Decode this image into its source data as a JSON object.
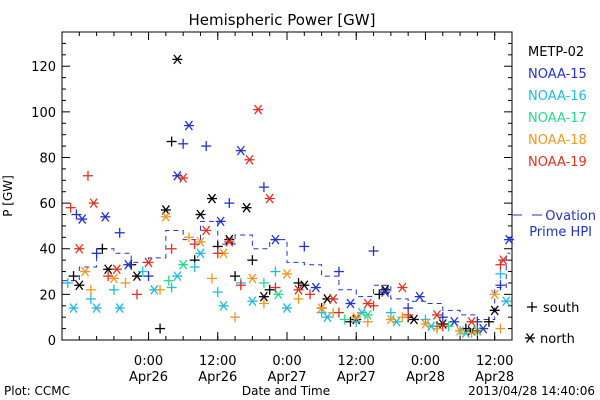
{
  "chart_data": {
    "type": "scatter",
    "title": "Hemispheric Power [GW]",
    "ylabel": "P [GW]",
    "xlabel": "Date and Time",
    "ylim": [
      0,
      135
    ],
    "yticks": [
      0,
      20,
      40,
      60,
      80,
      100,
      120
    ],
    "xrange": [
      "2013-04-25 09:00",
      "2013-04-28 15:00"
    ],
    "xticks": [
      {
        "t": "2013-04-26 00:00",
        "time": "0:00",
        "date": "Apr26"
      },
      {
        "t": "2013-04-26 12:00",
        "time": "12:00",
        "date": "Apr26"
      },
      {
        "t": "2013-04-27 00:00",
        "time": "0:00",
        "date": "Apr27"
      },
      {
        "t": "2013-04-27 12:00",
        "time": "12:00",
        "date": "Apr27"
      },
      {
        "t": "2013-04-28 00:00",
        "time": "0:00",
        "date": "Apr28"
      },
      {
        "t": "2013-04-28 12:00",
        "time": "12:00",
        "date": "Apr28"
      }
    ],
    "grid": false,
    "legend_position": "right",
    "series": [
      {
        "name": "METP-02",
        "color": "#000000",
        "south": [
          [
            "2013-04-25 11:00",
            28
          ],
          [
            "2013-04-25 16:00",
            40
          ],
          [
            "2013-04-25 21:00",
            33
          ],
          [
            "2013-04-26 02:00",
            5
          ],
          [
            "2013-04-26 04:00",
            87
          ],
          [
            "2013-04-26 08:00",
            35
          ],
          [
            "2013-04-26 12:00",
            41
          ],
          [
            "2013-04-26 15:00",
            28
          ],
          [
            "2013-04-26 18:00",
            35
          ],
          [
            "2013-04-26 21:00",
            22
          ],
          [
            "2013-04-27 02:00",
            25
          ],
          [
            "2013-04-27 06:00",
            14
          ],
          [
            "2013-04-27 11:00",
            8
          ],
          [
            "2013-04-27 16:00",
            20
          ],
          [
            "2013-04-27 21:00",
            10
          ],
          [
            "2013-04-28 02:00",
            6
          ],
          [
            "2013-04-28 07:00",
            5
          ],
          [
            "2013-04-28 11:00",
            8
          ]
        ],
        "north": [
          [
            "2013-04-25 12:00",
            24
          ],
          [
            "2013-04-25 17:00",
            31
          ],
          [
            "2013-04-25 22:00",
            28
          ],
          [
            "2013-04-26 03:00",
            57
          ],
          [
            "2013-04-26 05:00",
            123
          ],
          [
            "2013-04-26 09:00",
            55
          ],
          [
            "2013-04-26 11:00",
            62
          ],
          [
            "2013-04-26 14:00",
            44
          ],
          [
            "2013-04-26 17:00",
            58
          ],
          [
            "2013-04-26 20:00",
            19
          ],
          [
            "2013-04-27 03:00",
            24
          ],
          [
            "2013-04-27 07:00",
            18
          ],
          [
            "2013-04-27 12:00",
            9
          ],
          [
            "2013-04-27 17:00",
            22
          ],
          [
            "2013-04-27 22:00",
            9
          ],
          [
            "2013-04-28 03:00",
            7
          ],
          [
            "2013-04-28 08:00",
            4
          ],
          [
            "2013-04-28 12:00",
            13
          ]
        ]
      },
      {
        "name": "NOAA-15",
        "color": "#2233cc",
        "south": [
          [
            "2013-04-25 11:30",
            55
          ],
          [
            "2013-04-25 15:00",
            38
          ],
          [
            "2013-04-25 19:00",
            47
          ],
          [
            "2013-04-26 00:00",
            28
          ],
          [
            "2013-04-26 06:00",
            86
          ],
          [
            "2013-04-26 10:00",
            85
          ],
          [
            "2013-04-26 14:00",
            60
          ],
          [
            "2013-04-26 20:00",
            67
          ],
          [
            "2013-04-27 03:00",
            41
          ],
          [
            "2013-04-27 09:00",
            30
          ],
          [
            "2013-04-27 15:00",
            39
          ],
          [
            "2013-04-27 21:00",
            14
          ],
          [
            "2013-04-28 03:00",
            10
          ],
          [
            "2013-04-28 09:00",
            8
          ],
          [
            "2013-04-28 13:00",
            24
          ]
        ],
        "north": [
          [
            "2013-04-25 12:30",
            53
          ],
          [
            "2013-04-25 16:30",
            54
          ],
          [
            "2013-04-25 20:30",
            33
          ],
          [
            "2013-04-26 05:00",
            72
          ],
          [
            "2013-04-26 07:00",
            94
          ],
          [
            "2013-04-26 12:30",
            52
          ],
          [
            "2013-04-26 16:00",
            83
          ],
          [
            "2013-04-26 22:00",
            44
          ],
          [
            "2013-04-27 05:00",
            23
          ],
          [
            "2013-04-27 11:00",
            16
          ],
          [
            "2013-04-27 17:00",
            21
          ],
          [
            "2013-04-27 23:00",
            19
          ],
          [
            "2013-04-28 05:00",
            8
          ],
          [
            "2013-04-28 10:00",
            5
          ],
          [
            "2013-04-28 14:30",
            44
          ]
        ]
      },
      {
        "name": "NOAA-16",
        "color": "#22bbdd",
        "south": [
          [
            "2013-04-25 10:00",
            25
          ],
          [
            "2013-04-25 14:00",
            18
          ],
          [
            "2013-04-25 18:00",
            22
          ],
          [
            "2013-04-25 23:00",
            30
          ],
          [
            "2013-04-26 04:00",
            23
          ],
          [
            "2013-04-26 08:00",
            32
          ],
          [
            "2013-04-26 12:00",
            21
          ],
          [
            "2013-04-26 16:00",
            25
          ],
          [
            "2013-04-26 22:00",
            30
          ],
          [
            "2013-04-27 06:00",
            12
          ],
          [
            "2013-04-27 12:00",
            8
          ],
          [
            "2013-04-27 18:00",
            12
          ],
          [
            "2013-04-28 00:00",
            9
          ],
          [
            "2013-04-28 06:00",
            4
          ],
          [
            "2013-04-28 13:00",
            29
          ]
        ],
        "north": [
          [
            "2013-04-25 11:00",
            14
          ],
          [
            "2013-04-25 15:00",
            14
          ],
          [
            "2013-04-25 19:00",
            14
          ],
          [
            "2013-04-26 01:00",
            22
          ],
          [
            "2013-04-26 05:00",
            28
          ],
          [
            "2013-04-26 09:00",
            38
          ],
          [
            "2013-04-26 13:00",
            15
          ],
          [
            "2013-04-26 18:00",
            17
          ],
          [
            "2013-04-27 00:00",
            14
          ],
          [
            "2013-04-27 07:00",
            10
          ],
          [
            "2013-04-27 13:00",
            12
          ],
          [
            "2013-04-27 19:00",
            8
          ],
          [
            "2013-04-28 01:00",
            6
          ],
          [
            "2013-04-28 07:00",
            3
          ],
          [
            "2013-04-28 14:00",
            17
          ]
        ]
      },
      {
        "name": "NOAA-17",
        "color": "#22dd88",
        "south": [
          [
            "2013-04-26 03:30",
            26
          ],
          [
            "2013-04-26 20:00",
            25
          ],
          [
            "2013-04-27 10:00",
            9
          ],
          [
            "2013-04-28 04:00",
            6
          ]
        ],
        "north": [
          [
            "2013-04-26 06:00",
            33
          ],
          [
            "2013-04-26 22:30",
            20
          ],
          [
            "2013-04-27 14:00",
            11
          ],
          [
            "2013-04-28 09:00",
            4
          ]
        ]
      },
      {
        "name": "NOAA-18",
        "color": "#ee9922",
        "south": [
          [
            "2013-04-25 14:00",
            22
          ],
          [
            "2013-04-25 20:00",
            25
          ],
          [
            "2013-04-26 02:00",
            22
          ],
          [
            "2013-04-26 07:00",
            45
          ],
          [
            "2013-04-26 11:00",
            27
          ],
          [
            "2013-04-26 15:00",
            10
          ],
          [
            "2013-04-26 20:00",
            16
          ],
          [
            "2013-04-27 02:00",
            18
          ],
          [
            "2013-04-27 08:00",
            12
          ],
          [
            "2013-04-27 14:00",
            8
          ],
          [
            "2013-04-27 20:00",
            10
          ],
          [
            "2013-04-28 02:00",
            5
          ],
          [
            "2013-04-28 08:00",
            3
          ],
          [
            "2013-04-28 13:00",
            5
          ]
        ],
        "north": [
          [
            "2013-04-25 13:00",
            30
          ],
          [
            "2013-04-25 18:00",
            27
          ],
          [
            "2013-04-26 03:00",
            54
          ],
          [
            "2013-04-26 09:00",
            43
          ],
          [
            "2013-04-26 13:00",
            38
          ],
          [
            "2013-04-26 18:00",
            27
          ],
          [
            "2013-04-27 00:00",
            29
          ],
          [
            "2013-04-27 06:00",
            14
          ],
          [
            "2013-04-27 12:00",
            10
          ],
          [
            "2013-04-27 18:00",
            9
          ],
          [
            "2013-04-28 00:00",
            7
          ],
          [
            "2013-04-28 06:00",
            4
          ],
          [
            "2013-04-28 12:00",
            20
          ]
        ]
      },
      {
        "name": "NOAA-19",
        "color": "#dd3322",
        "south": [
          [
            "2013-04-25 10:30",
            58
          ],
          [
            "2013-04-25 13:30",
            72
          ],
          [
            "2013-04-25 17:00",
            28
          ],
          [
            "2013-04-25 22:00",
            20
          ],
          [
            "2013-04-26 04:00",
            40
          ],
          [
            "2013-04-26 08:00",
            42
          ],
          [
            "2013-04-26 12:00",
            38
          ],
          [
            "2013-04-26 16:00",
            24
          ],
          [
            "2013-04-26 22:00",
            23
          ],
          [
            "2013-04-27 04:00",
            20
          ],
          [
            "2013-04-27 09:00",
            12
          ],
          [
            "2013-04-27 15:00",
            15
          ],
          [
            "2013-04-27 21:00",
            11
          ],
          [
            "2013-04-28 03:00",
            6
          ],
          [
            "2013-04-28 09:00",
            4
          ],
          [
            "2013-04-28 13:00",
            33
          ]
        ],
        "north": [
          [
            "2013-04-25 12:00",
            40
          ],
          [
            "2013-04-25 14:30",
            60
          ],
          [
            "2013-04-25 18:30",
            31
          ],
          [
            "2013-04-26 00:00",
            34
          ],
          [
            "2013-04-26 06:00",
            71
          ],
          [
            "2013-04-26 10:00",
            48
          ],
          [
            "2013-04-26 14:00",
            43
          ],
          [
            "2013-04-26 17:30",
            79
          ],
          [
            "2013-04-26 19:00",
            101
          ],
          [
            "2013-04-26 21:00",
            62
          ],
          [
            "2013-04-27 02:00",
            22
          ],
          [
            "2013-04-27 08:00",
            18
          ],
          [
            "2013-04-27 14:00",
            16
          ],
          [
            "2013-04-27 20:00",
            23
          ],
          [
            "2013-04-28 02:00",
            11
          ],
          [
            "2013-04-28 08:00",
            8
          ],
          [
            "2013-04-28 13:30",
            35
          ]
        ]
      }
    ],
    "ovation": {
      "name": "Ovation Prime HPI",
      "color": "#2233cc",
      "values": [
        [
          "2013-04-25 09:00",
          26
        ],
        [
          "2013-04-25 12:00",
          32
        ],
        [
          "2013-04-25 15:00",
          40
        ],
        [
          "2013-04-25 18:00",
          38
        ],
        [
          "2013-04-25 21:00",
          34
        ],
        [
          "2013-04-26 00:00",
          36
        ],
        [
          "2013-04-26 03:00",
          48
        ],
        [
          "2013-04-26 06:00",
          44
        ],
        [
          "2013-04-26 09:00",
          52
        ],
        [
          "2013-04-26 12:00",
          42
        ],
        [
          "2013-04-26 15:00",
          46
        ],
        [
          "2013-04-26 18:00",
          40
        ],
        [
          "2013-04-26 21:00",
          44
        ],
        [
          "2013-04-27 00:00",
          34
        ],
        [
          "2013-04-27 03:00",
          33
        ],
        [
          "2013-04-27 06:00",
          28
        ],
        [
          "2013-04-27 09:00",
          22
        ],
        [
          "2013-04-27 12:00",
          19
        ],
        [
          "2013-04-27 15:00",
          24
        ],
        [
          "2013-04-27 18:00",
          18
        ],
        [
          "2013-04-27 21:00",
          17
        ],
        [
          "2013-04-28 00:00",
          16
        ],
        [
          "2013-04-28 03:00",
          13
        ],
        [
          "2013-04-28 06:00",
          11
        ],
        [
          "2013-04-28 09:00",
          9
        ],
        [
          "2013-04-28 12:00",
          23
        ],
        [
          "2013-04-28 14:00",
          38
        ]
      ]
    },
    "marker_legend": {
      "south": "south",
      "north": "north"
    },
    "footer_left": "Plot: CCMC",
    "footer_right": "2013/04/28 14:40:06"
  }
}
